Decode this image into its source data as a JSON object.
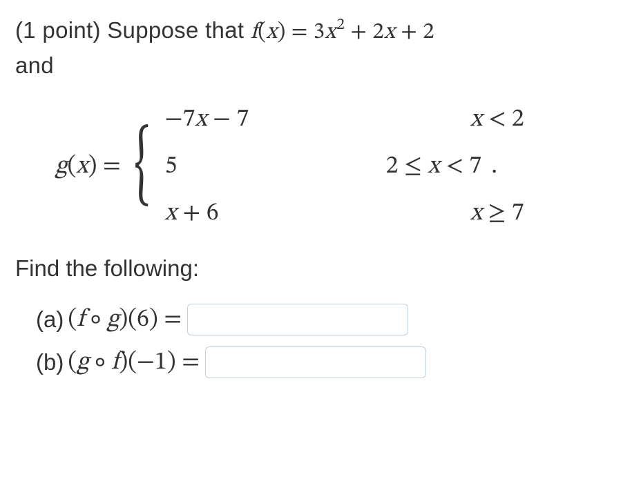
{
  "problem": {
    "points_prefix": "(1 point) Suppose that ",
    "f_lhs_fn": "f",
    "f_lhs_var": "x",
    "equals": " = ",
    "f_rhs_coef1": "3",
    "f_rhs_var": "x",
    "f_rhs_sup": "2",
    "f_rhs_plus1": " + ",
    "f_rhs_coef2": "2",
    "f_rhs_plus2": " + ",
    "f_rhs_const": "2",
    "and_text": "and"
  },
  "piecewise": {
    "g_fn": "g",
    "g_var": "x",
    "g_equals": " = ",
    "cases": [
      {
        "expr_prefix": "−",
        "expr_coef": "7",
        "expr_var": "x",
        "expr_mid": " − ",
        "expr_const": "7",
        "cond_var": "x",
        "cond_rel": " < ",
        "cond_val": "2"
      },
      {
        "expr_only": "5",
        "cond_prefix": "2 ≤ ",
        "cond_var": "x",
        "cond_rel": " < ",
        "cond_val": "7"
      },
      {
        "expr_var": "x",
        "expr_mid": " + ",
        "expr_const": "6",
        "cond_var": "x",
        "cond_rel": " ≥ ",
        "cond_val": "7"
      }
    ],
    "period": "."
  },
  "find_text": "Find the following:",
  "parts": {
    "a": {
      "label": "(a) ",
      "open": "(",
      "fn1": "f",
      "circ": " ∘ ",
      "fn2": "g",
      "close": ")",
      "arg_open": "(",
      "arg": "6",
      "arg_close": ")",
      "equals": " ="
    },
    "b": {
      "label": "(b) ",
      "open": "(",
      "fn1": "g",
      "circ": " ∘ ",
      "fn2": "f",
      "close": ")",
      "arg_open": "(",
      "arg": "−1",
      "arg_close": ")",
      "equals": " ="
    }
  }
}
